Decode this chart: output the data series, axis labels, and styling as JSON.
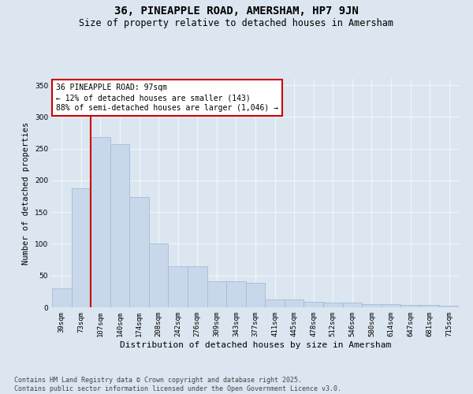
{
  "title": "36, PINEAPPLE ROAD, AMERSHAM, HP7 9JN",
  "subtitle": "Size of property relative to detached houses in Amersham",
  "xlabel": "Distribution of detached houses by size in Amersham",
  "ylabel": "Number of detached properties",
  "categories": [
    "39sqm",
    "73sqm",
    "107sqm",
    "140sqm",
    "174sqm",
    "208sqm",
    "242sqm",
    "276sqm",
    "309sqm",
    "343sqm",
    "377sqm",
    "411sqm",
    "445sqm",
    "478sqm",
    "512sqm",
    "546sqm",
    "580sqm",
    "614sqm",
    "647sqm",
    "681sqm",
    "715sqm"
  ],
  "values": [
    30,
    188,
    268,
    257,
    174,
    100,
    65,
    65,
    41,
    41,
    38,
    12,
    12,
    9,
    8,
    7,
    5,
    5,
    4,
    4,
    2
  ],
  "bar_color": "#c8d8ea",
  "bar_edgecolor": "#a0bcd8",
  "vline_color": "#cc0000",
  "vline_x": 1.5,
  "annotation_text": "36 PINEAPPLE ROAD: 97sqm\n← 12% of detached houses are smaller (143)\n88% of semi-detached houses are larger (1,046) →",
  "annotation_box_edgecolor": "#cc0000",
  "annotation_box_facecolor": "#ffffff",
  "ylim_max": 360,
  "yticks": [
    0,
    50,
    100,
    150,
    200,
    250,
    300,
    350
  ],
  "background_color": "#dce6f0",
  "grid_color": "#f0f4f8",
  "footer_line1": "Contains HM Land Registry data © Crown copyright and database right 2025.",
  "footer_line2": "Contains public sector information licensed under the Open Government Licence v3.0.",
  "title_fontsize": 10,
  "subtitle_fontsize": 8.5,
  "xlabel_fontsize": 8,
  "ylabel_fontsize": 7.5,
  "tick_fontsize": 6.5,
  "annotation_fontsize": 7,
  "footer_fontsize": 6
}
